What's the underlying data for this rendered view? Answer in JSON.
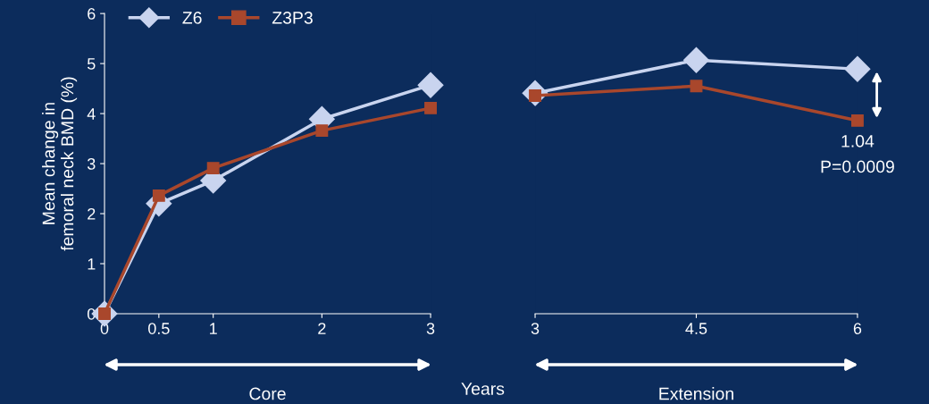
{
  "chart_data": [
    {
      "type": "line",
      "ylabel": "Mean change in\nfemoral neck BMD (%)",
      "xlabel": "Core",
      "x": [
        0,
        0.5,
        1,
        2,
        3
      ],
      "xlim": [
        0,
        3
      ],
      "xticks": [
        0,
        0.5,
        1,
        2,
        3
      ],
      "ylim": [
        0,
        6
      ],
      "yticks": [
        0,
        1,
        2,
        3,
        4,
        5,
        6
      ],
      "legend": "top left",
      "grid": false,
      "annotations": [
        "Years"
      ],
      "series": [
        {
          "name": "Z6",
          "color": "#c9d4ef",
          "marker": "diamond",
          "values": [
            0,
            2.2,
            2.66,
            3.89,
            4.57
          ]
        },
        {
          "name": "Z3P3",
          "color": "#a9472c",
          "marker": "square",
          "values": [
            0,
            2.36,
            2.91,
            3.66,
            4.11
          ]
        }
      ]
    },
    {
      "type": "line",
      "xlabel": "Extension",
      "x": [
        3,
        4.5,
        6
      ],
      "xlim": [
        3,
        6
      ],
      "xticks": [
        3,
        4.5,
        6
      ],
      "ylim": [
        0,
        6
      ],
      "tick_labels": "x",
      "grid": false,
      "annotations": [
        "1.04",
        "P=0.0009"
      ],
      "series": [
        {
          "color": "#c9d4ef",
          "marker": "diamond",
          "values": [
            4.41,
            5.07,
            4.89
          ]
        },
        {
          "color": "#a9472c",
          "marker": "square",
          "values": [
            4.36,
            4.55,
            3.86
          ]
        }
      ]
    }
  ]
}
